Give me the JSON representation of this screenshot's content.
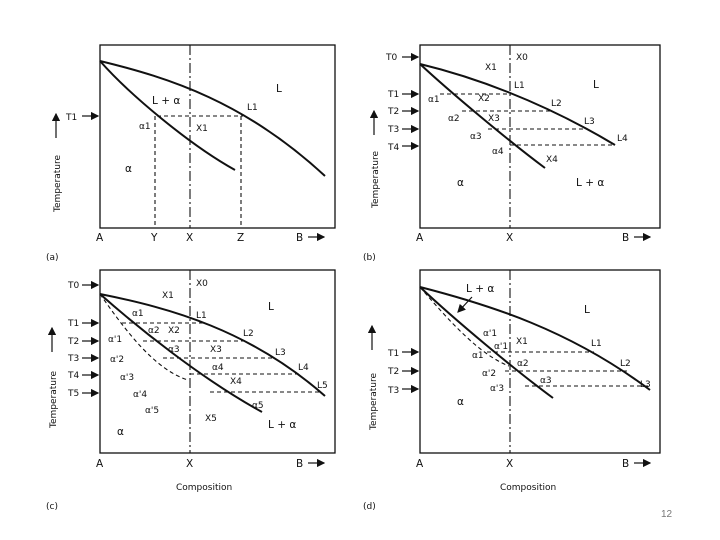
{
  "axes": {
    "temperature": "Temperature",
    "composition": "Composition",
    "left_end": "A",
    "right_end": "B"
  },
  "panels": {
    "a": {
      "tag": "(a)",
      "regions": {
        "liquid": "L",
        "two_phase": "L + α",
        "solid": "α"
      },
      "temps": [
        "T1"
      ],
      "points": {
        "alpha1": "α1",
        "x1": "X1",
        "l1": "L1"
      },
      "compositions": [
        "Y",
        "X",
        "Z"
      ]
    },
    "b": {
      "tag": "(b)",
      "regions": {
        "liquid": "L",
        "two_phase": "L + α",
        "solid": "α"
      },
      "temps": [
        "T0",
        "T1",
        "T2",
        "T3",
        "T4"
      ],
      "x_labels": [
        "X0",
        "X1",
        "X2",
        "X3",
        "X4"
      ],
      "alpha_labels": [
        "α1",
        "α2",
        "α3",
        "α4"
      ],
      "l_labels": [
        "L1",
        "L2",
        "L3",
        "L4"
      ],
      "compositions": [
        "X"
      ]
    },
    "c": {
      "tag": "(c)",
      "regions": {
        "liquid": "L",
        "two_phase": "L + α",
        "solid": "α"
      },
      "temps": [
        "T0",
        "T1",
        "T2",
        "T3",
        "T4",
        "T5"
      ],
      "x_labels": [
        "X0",
        "X1",
        "X2",
        "X3",
        "X4",
        "X5"
      ],
      "alpha_labels": [
        "α1",
        "α2",
        "α3",
        "α4",
        "α5"
      ],
      "alpha_prime_labels": [
        "α'1",
        "α'2",
        "α'3",
        "α'4",
        "α'5"
      ],
      "l_labels": [
        "L1",
        "L2",
        "L3",
        "L4",
        "L5"
      ],
      "compositions": [
        "X"
      ]
    },
    "d": {
      "tag": "(d)",
      "regions": {
        "liquid": "L",
        "two_phase": "L + α",
        "solid": "α"
      },
      "temps": [
        "T1",
        "T2",
        "T3"
      ],
      "x_labels": [
        "X1"
      ],
      "alpha_labels": [
        "α1",
        "α2",
        "α3"
      ],
      "alpha_prime_labels": [
        "α'1",
        "α'1",
        "α'2",
        "α'3"
      ],
      "l_labels": [
        "L1",
        "L2",
        "L3"
      ],
      "compositions": [
        "X"
      ]
    }
  },
  "page_number": "12"
}
